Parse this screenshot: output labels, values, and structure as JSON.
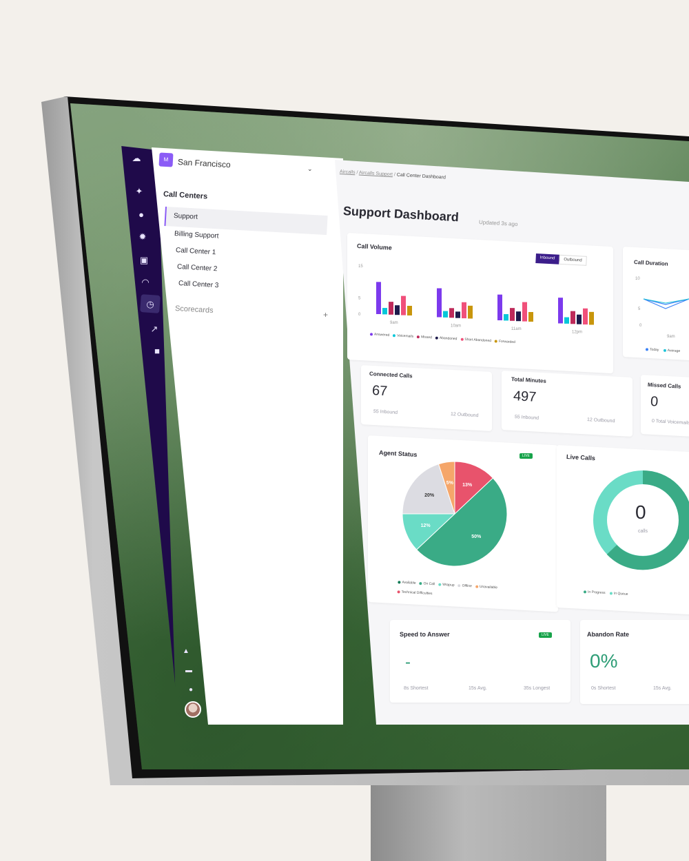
{
  "workspace": {
    "initial": "M",
    "name": "San Francisco"
  },
  "sidebar": {
    "section_title": "Call Centers",
    "items": [
      {
        "label": "Support",
        "active": true
      },
      {
        "label": "Billing Support"
      },
      {
        "label": "Call Center 1"
      },
      {
        "label": "Call Center 2"
      },
      {
        "label": "Call Center 3"
      }
    ],
    "scorecards_label": "Scorecards",
    "add_label": "+"
  },
  "breadcrumb": {
    "item1": "Aircalls",
    "item2": "Aircalls Support",
    "current": "Call Center Dashboard"
  },
  "header": {
    "title": "Support Dashboard",
    "updated": "Updated 3s ago"
  },
  "call_volume": {
    "title": "Call Volume",
    "toggle": [
      "Inbound",
      "Outbound"
    ],
    "legend": [
      "Answered",
      "Voicemails",
      "Missed",
      "Abandoned",
      "Short Abandoned",
      "Forwarded"
    ],
    "legend_colors": [
      "#7c3aed",
      "#06c7d9",
      "#be2a5a",
      "#1e1b4b",
      "#f0507a",
      "#c8960c"
    ],
    "chart_data": {
      "type": "bar",
      "categories": [
        "9am",
        "10am",
        "11am",
        "12pm"
      ],
      "series": [
        {
          "name": "Answered",
          "values": [
            10,
            9,
            8,
            8
          ]
        },
        {
          "name": "Voicemails",
          "values": [
            2,
            2,
            2,
            2
          ]
        },
        {
          "name": "Missed",
          "values": [
            4,
            3,
            4,
            4
          ]
        },
        {
          "name": "Abandoned",
          "values": [
            3,
            2,
            3,
            3
          ]
        },
        {
          "name": "Short Abandoned",
          "values": [
            6,
            5,
            6,
            5
          ]
        },
        {
          "name": "Forwarded",
          "values": [
            3,
            4,
            3,
            4
          ]
        }
      ],
      "yticks": [
        "15",
        "5",
        "0"
      ],
      "ylim": [
        0,
        15
      ]
    }
  },
  "call_duration": {
    "title": "Call Duration",
    "yticks": [
      "10",
      "5",
      "0"
    ],
    "xtick": "9am",
    "legend": [
      "Today",
      "Average"
    ],
    "legend_colors": [
      "#3b82f6",
      "#22c5d9"
    ]
  },
  "connected_calls": {
    "title": "Connected Calls",
    "value": "67",
    "left": "55 Inbound",
    "right": "12 Outbound"
  },
  "total_minutes": {
    "title": "Total Minutes",
    "value": "497",
    "left": "55 Inbound",
    "right": "12 Outbound"
  },
  "missed_calls": {
    "title": "Missed Calls",
    "value": "0",
    "left": "0 Total Voicemails"
  },
  "agent_status": {
    "title": "Agent Status",
    "badge": "LIVE",
    "legend": [
      "Available",
      "On Call",
      "Wrapup",
      "Offline",
      "Unavailable",
      "Technical Difficulties"
    ],
    "legend_colors": [
      "#0f7a55",
      "#3aab86",
      "#6adcc6",
      "#d9d9de",
      "#f5a66a",
      "#e8536c"
    ],
    "chart_data": {
      "type": "pie",
      "categories": [
        "On Call",
        "Available",
        "Offline",
        "Unavailable",
        "Technical Difficulties"
      ],
      "values": [
        50,
        12,
        20,
        5,
        13
      ],
      "labels": [
        "50%",
        "12%",
        "20%",
        "5%",
        "13%"
      ],
      "colors": [
        "#3aab86",
        "#6adcc6",
        "#dcdce2",
        "#f5a66a",
        "#e8536c"
      ]
    }
  },
  "live_calls": {
    "title": "Live Calls",
    "value": "0",
    "unit": "calls",
    "legend": [
      "In Progress",
      "In Queue"
    ],
    "legend_colors": [
      "#3aab86",
      "#6adcc6"
    ]
  },
  "speed_to_answer": {
    "title": "Speed to Answer",
    "badge": "LIVE",
    "value": "-",
    "s1": "8s Shortest",
    "s2": "15s Avg.",
    "s3": "35s Longest"
  },
  "abandon_rate": {
    "title": "Abandon Rate",
    "value": "0%",
    "s1": "0s Shortest",
    "s2": "15s Avg."
  }
}
